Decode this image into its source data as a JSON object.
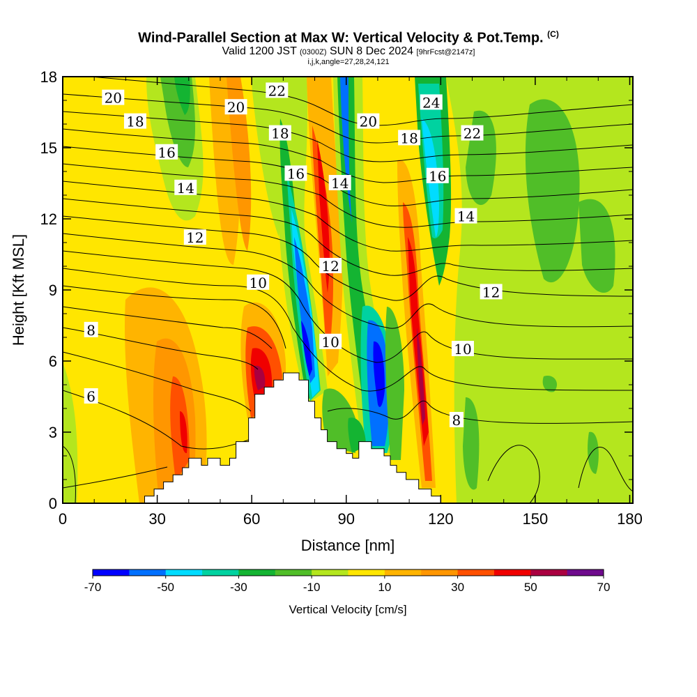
{
  "header": {
    "title": "Wind-Parallel Section at Max W: Vertical Velocity & Pot.Temp.",
    "copyright": "(C)",
    "valid_prefix": "Valid 1200 JST",
    "valid_utc": "(0300Z)",
    "valid_date": "SUN 8 Dec 2024",
    "forecast": "[9hrFcst@2147z]",
    "indices": "i,j,k,angle=27,28,24,121"
  },
  "chart_data": {
    "type": "heatmap",
    "xlabel": "Distance [nm]",
    "ylabel": "Height [Kft MSL]",
    "xlim": [
      0,
      181
    ],
    "ylim": [
      0,
      18
    ],
    "x_ticks": [
      0,
      30,
      60,
      90,
      120,
      150,
      180
    ],
    "y_ticks": [
      0,
      3,
      6,
      9,
      12,
      15,
      18
    ],
    "colorbar": {
      "label": "Vertical Velocity [cm/s]",
      "range": [
        -70,
        70
      ],
      "tick_labels": [
        "-70",
        "-50",
        "-30",
        "-10",
        "10",
        "30",
        "50",
        "70"
      ],
      "tick_values": [
        -70,
        -50,
        -30,
        -10,
        10,
        30,
        50,
        70
      ],
      "colors": [
        "#0000ff",
        "#0070ff",
        "#00dcff",
        "#00d2a0",
        "#14b432",
        "#50be28",
        "#b4e61e",
        "#ffe600",
        "#ffb400",
        "#ff9600",
        "#ff5000",
        "#f00000",
        "#aa0040",
        "#6e0a8c"
      ]
    },
    "terrain": [
      [
        0,
        0
      ],
      [
        26,
        0
      ],
      [
        26,
        0.3
      ],
      [
        29,
        0.3
      ],
      [
        29,
        0.6
      ],
      [
        32,
        0.6
      ],
      [
        32,
        0.9
      ],
      [
        35,
        0.9
      ],
      [
        35,
        1.2
      ],
      [
        38,
        1.2
      ],
      [
        38,
        1.5
      ],
      [
        40,
        1.5
      ],
      [
        40,
        1.9
      ],
      [
        44,
        1.9
      ],
      [
        44,
        1.6
      ],
      [
        46,
        1.6
      ],
      [
        46,
        1.9
      ],
      [
        50,
        1.9
      ],
      [
        50,
        1.6
      ],
      [
        53,
        1.6
      ],
      [
        53,
        1.9
      ],
      [
        55,
        1.9
      ],
      [
        55,
        2.6
      ],
      [
        59,
        2.6
      ],
      [
        59,
        3.6
      ],
      [
        61,
        3.6
      ],
      [
        61,
        4.6
      ],
      [
        64,
        4.6
      ],
      [
        64,
        4.9
      ],
      [
        67,
        4.9
      ],
      [
        67,
        5.2
      ],
      [
        70,
        5.2
      ],
      [
        70,
        5.5
      ],
      [
        75,
        5.5
      ],
      [
        75,
        5.2
      ],
      [
        78,
        5.2
      ],
      [
        78,
        4.3
      ],
      [
        80,
        4.3
      ],
      [
        80,
        3.6
      ],
      [
        82,
        3.6
      ],
      [
        82,
        3.1
      ],
      [
        84,
        3.1
      ],
      [
        84,
        2.6
      ],
      [
        87,
        2.6
      ],
      [
        87,
        2.3
      ],
      [
        90,
        2.3
      ],
      [
        90,
        2.1
      ],
      [
        92,
        2.1
      ],
      [
        92,
        1.9
      ],
      [
        94,
        1.9
      ],
      [
        94,
        2.6
      ],
      [
        98,
        2.6
      ],
      [
        98,
        2.3
      ],
      [
        102,
        2.3
      ],
      [
        102,
        2.0
      ],
      [
        104,
        2.0
      ],
      [
        104,
        1.6
      ],
      [
        106,
        1.6
      ],
      [
        106,
        1.3
      ],
      [
        109,
        1.3
      ],
      [
        109,
        1.0
      ],
      [
        113,
        1.0
      ],
      [
        113,
        0.6
      ],
      [
        117,
        0.6
      ],
      [
        117,
        0.3
      ],
      [
        120,
        0.3
      ],
      [
        120,
        0
      ],
      [
        181,
        0
      ]
    ],
    "theta_labels": [
      {
        "text": "20",
        "x": 16,
        "y": 17.1
      },
      {
        "text": "18",
        "x": 23,
        "y": 16.1
      },
      {
        "text": "16",
        "x": 33,
        "y": 14.8
      },
      {
        "text": "14",
        "x": 39,
        "y": 13.3
      },
      {
        "text": "12",
        "x": 42,
        "y": 11.2
      },
      {
        "text": "10",
        "x": 62,
        "y": 9.3
      },
      {
        "text": "8",
        "x": 9,
        "y": 7.3
      },
      {
        "text": "6",
        "x": 9,
        "y": 4.5
      },
      {
        "text": "22",
        "x": 68,
        "y": 17.4
      },
      {
        "text": "20",
        "x": 55,
        "y": 16.7
      },
      {
        "text": "18",
        "x": 69,
        "y": 15.6
      },
      {
        "text": "16",
        "x": 74,
        "y": 13.9
      },
      {
        "text": "14",
        "x": 88,
        "y": 13.5
      },
      {
        "text": "12",
        "x": 85,
        "y": 10.0
      },
      {
        "text": "10",
        "x": 85,
        "y": 6.8
      },
      {
        "text": "20",
        "x": 97,
        "y": 16.1
      },
      {
        "text": "18",
        "x": 110,
        "y": 15.4
      },
      {
        "text": "24",
        "x": 117,
        "y": 16.9
      },
      {
        "text": "22",
        "x": 130,
        "y": 15.6
      },
      {
        "text": "16",
        "x": 119,
        "y": 13.8
      },
      {
        "text": "14",
        "x": 128,
        "y": 12.1
      },
      {
        "text": "12",
        "x": 136,
        "y": 8.9
      },
      {
        "text": "10",
        "x": 127,
        "y": 6.5
      },
      {
        "text": "8",
        "x": 125,
        "y": 3.5
      }
    ]
  }
}
